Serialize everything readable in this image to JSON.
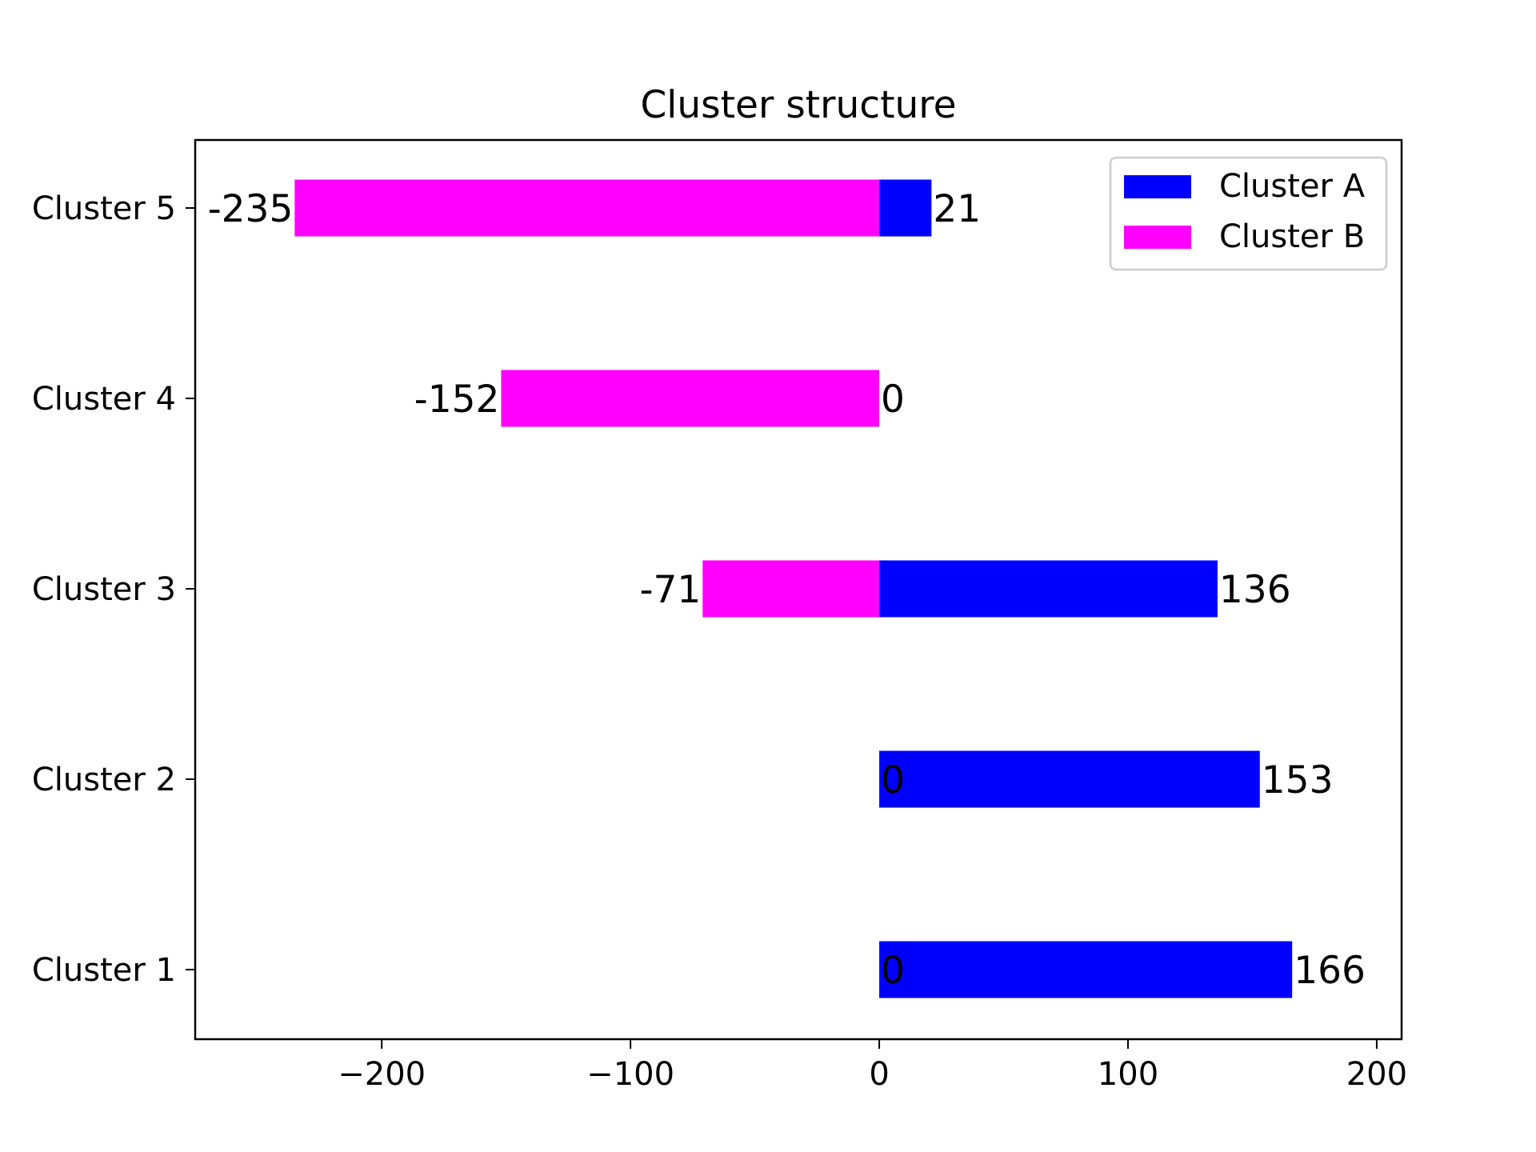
{
  "chart_data": {
    "type": "bar",
    "orientation": "horizontal",
    "stacked": "diverging",
    "title": "Cluster structure",
    "xlabel": "",
    "ylabel": "",
    "categories": [
      "Cluster 1",
      "Cluster 2",
      "Cluster 3",
      "Cluster 4",
      "Cluster 5"
    ],
    "series": [
      {
        "name": "Cluster A",
        "color": "#0000ff",
        "values": [
          166,
          153,
          136,
          0,
          21
        ]
      },
      {
        "name": "Cluster B",
        "color": "#ff00ff",
        "values": [
          0,
          0,
          -71,
          -152,
          -235
        ]
      }
    ],
    "data_labels": {
      "Cluster A": [
        "166",
        "153",
        "136",
        "0",
        "21"
      ],
      "Cluster B": [
        "0",
        "0",
        "-71",
        "-152",
        "-235"
      ]
    },
    "xlim": [
      -275,
      210
    ],
    "xticks": [
      -200,
      -100,
      0,
      100,
      200
    ],
    "xtick_labels": [
      "−200",
      "−100",
      "0",
      "100",
      "200"
    ],
    "grid": false,
    "legend_position": "upper right"
  }
}
